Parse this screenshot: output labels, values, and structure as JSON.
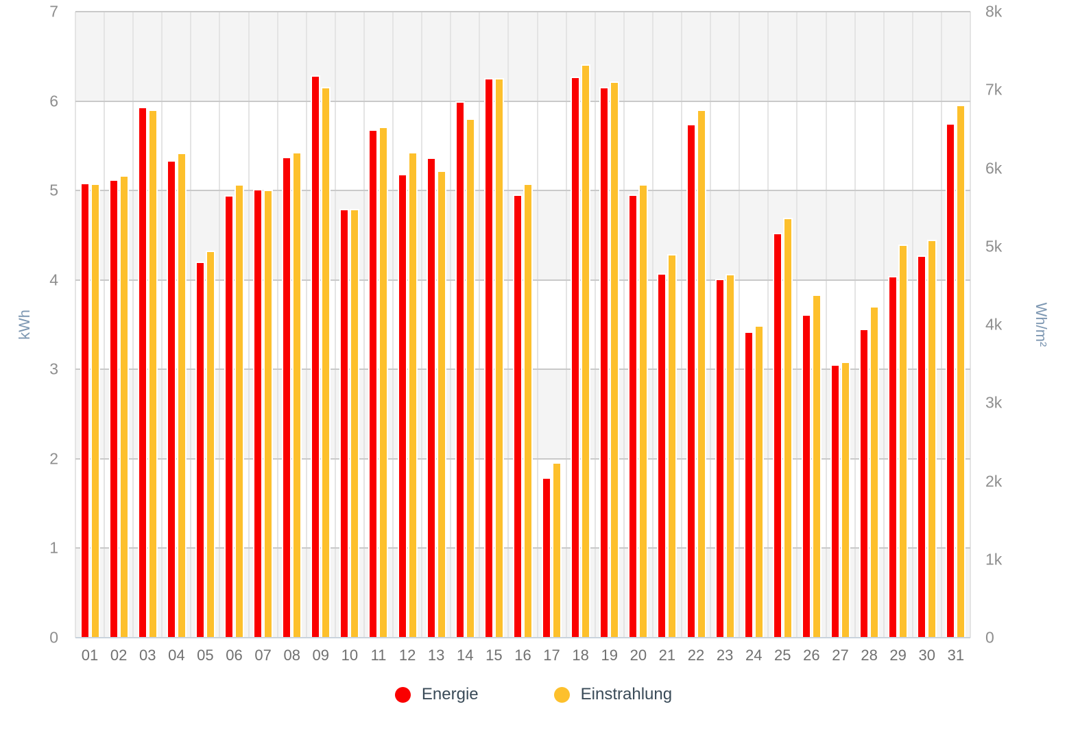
{
  "chart_data": {
    "type": "bar",
    "title": "",
    "categories": [
      "01",
      "02",
      "03",
      "04",
      "05",
      "06",
      "07",
      "08",
      "09",
      "10",
      "11",
      "12",
      "13",
      "14",
      "15",
      "16",
      "17",
      "18",
      "19",
      "20",
      "21",
      "22",
      "23",
      "24",
      "25",
      "26",
      "27",
      "28",
      "29",
      "30",
      "31"
    ],
    "series": [
      {
        "name": "Energie",
        "unit": "kWh",
        "axis": "left",
        "color": "#fa0000",
        "values": [
          5.07,
          5.11,
          5.92,
          5.32,
          4.19,
          4.93,
          5.0,
          5.36,
          6.27,
          4.78,
          5.67,
          5.17,
          5.35,
          5.98,
          6.24,
          4.94,
          1.78,
          6.26,
          6.14,
          4.94,
          4.06,
          5.73,
          4.0,
          3.41,
          4.51,
          3.6,
          3.04,
          3.44,
          4.03,
          4.26,
          5.74
        ]
      },
      {
        "name": "Einstrahlung",
        "unit": "Wh/m²",
        "axis": "right",
        "color": "#fdc02c",
        "values": [
          5790,
          5890,
          6730,
          6180,
          4930,
          5780,
          5710,
          6190,
          7020,
          5460,
          6510,
          6190,
          5950,
          6620,
          7130,
          5790,
          2220,
          7310,
          7090,
          5780,
          4880,
          6730,
          4630,
          3970,
          5350,
          4370,
          3510,
          4220,
          5010,
          5070,
          6790
        ]
      }
    ],
    "left_axis": {
      "label": "kWh",
      "min": 0,
      "max": 7,
      "ticks": [
        "0",
        "1",
        "2",
        "3",
        "4",
        "5",
        "6",
        "7"
      ]
    },
    "right_axis": {
      "label": "Wh/m²",
      "min": 0,
      "max": 8000,
      "ticks": [
        "0",
        "1k",
        "2k",
        "3k",
        "4k",
        "5k",
        "6k",
        "7k",
        "8k"
      ]
    },
    "grid": true,
    "band_fill": "#f4f4f4",
    "legend_position": "bottom"
  },
  "legend": {
    "items": [
      {
        "label": "Energie",
        "color": "#fa0000"
      },
      {
        "label": "Einstrahlung",
        "color": "#fdc02c"
      }
    ]
  }
}
